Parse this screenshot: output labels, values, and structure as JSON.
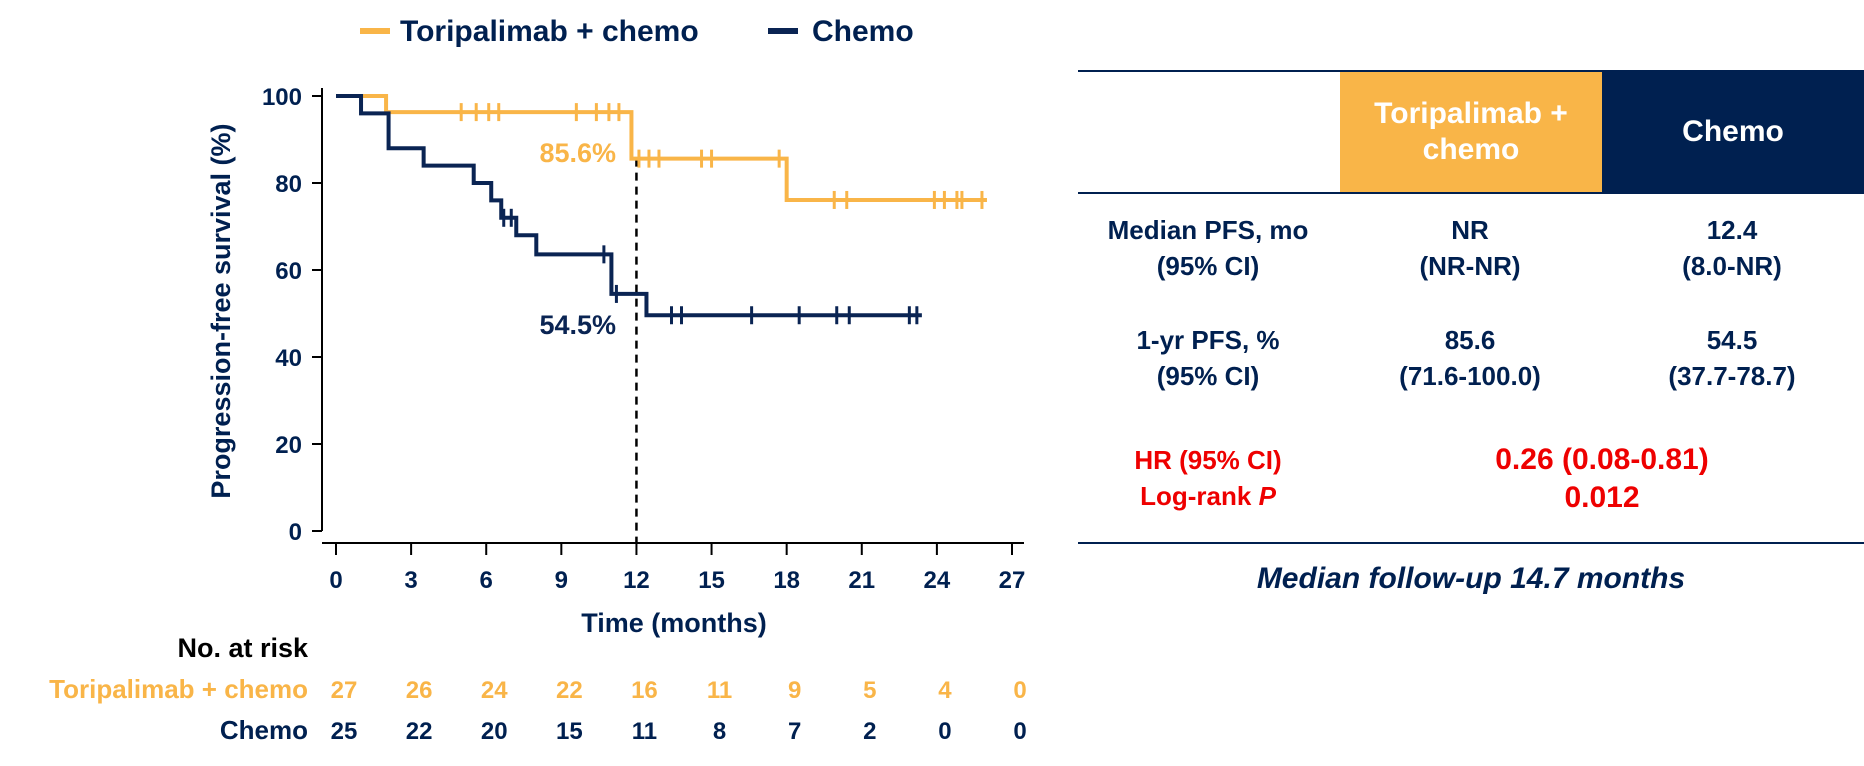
{
  "colors": {
    "tori": "#F9B548",
    "chemo": "#0A2453",
    "text_dark": "#002050",
    "hr_red": "#EE0000"
  },
  "chart_data": {
    "type": "line",
    "subtype": "kaplan-meier",
    "title": "",
    "xlabel": "Time (months)",
    "ylabel": "Progression-free survival (%)",
    "xlim": [
      0,
      27
    ],
    "ylim": [
      0,
      100
    ],
    "xticks": [
      0,
      3,
      6,
      9,
      12,
      15,
      18,
      21,
      24,
      27
    ],
    "yticks": [
      0,
      20,
      40,
      60,
      80,
      100
    ],
    "legend_position": "top",
    "legend": [
      "Toripalimab + chemo",
      "Chemo"
    ],
    "reference_line_x": 12,
    "series": [
      {
        "name": "Toripalimab + chemo",
        "color": "#F9B548",
        "steps": [
          [
            0,
            100
          ],
          [
            2,
            96.3
          ],
          [
            11.8,
            85.6
          ],
          [
            18,
            76.1
          ],
          [
            26,
            76.1
          ]
        ],
        "censors": [
          [
            5,
            96.3
          ],
          [
            5.6,
            96.3
          ],
          [
            6.1,
            96.3
          ],
          [
            6.5,
            96.3
          ],
          [
            9.6,
            96.3
          ],
          [
            10.4,
            96.3
          ],
          [
            10.9,
            96.3
          ],
          [
            11.3,
            96.3
          ],
          [
            12.1,
            85.6
          ],
          [
            12.5,
            85.6
          ],
          [
            12.9,
            85.6
          ],
          [
            14.6,
            85.6
          ],
          [
            15,
            85.6
          ],
          [
            17.7,
            85.6
          ],
          [
            19.9,
            76.1
          ],
          [
            20.4,
            76.1
          ],
          [
            23.9,
            76.1
          ],
          [
            24.3,
            76.1
          ],
          [
            24.8,
            76.1
          ],
          [
            25,
            76.1
          ],
          [
            25.8,
            76.1
          ]
        ],
        "annotation": {
          "text": "85.6%",
          "x": 12,
          "y": 85.6
        }
      },
      {
        "name": "Chemo",
        "color": "#0A2453",
        "steps": [
          [
            0,
            100
          ],
          [
            1,
            96
          ],
          [
            2.1,
            88
          ],
          [
            3.5,
            84
          ],
          [
            5.5,
            80
          ],
          [
            6.2,
            76
          ],
          [
            6.6,
            72
          ],
          [
            7.2,
            68
          ],
          [
            8,
            63.6
          ],
          [
            11,
            54.5
          ],
          [
            12.4,
            49.6
          ],
          [
            23.4,
            49.6
          ]
        ],
        "censors": [
          [
            6.7,
            72
          ],
          [
            7,
            72
          ],
          [
            10.7,
            63.6
          ],
          [
            11.2,
            54.5
          ],
          [
            13.4,
            49.6
          ],
          [
            13.8,
            49.6
          ],
          [
            16.6,
            49.6
          ],
          [
            18.5,
            49.6
          ],
          [
            20,
            49.6
          ],
          [
            20.5,
            49.6
          ],
          [
            22.9,
            49.6
          ],
          [
            23.2,
            49.6
          ]
        ],
        "annotation": {
          "text": "54.5%",
          "x": 12,
          "y": 54.5
        }
      }
    ],
    "risk_table": {
      "title": "No. at risk",
      "rows": [
        {
          "label": "Toripalimab + chemo",
          "values": [
            27,
            26,
            24,
            22,
            16,
            11,
            9,
            5,
            4,
            0
          ]
        },
        {
          "label": "Chemo",
          "values": [
            25,
            22,
            20,
            15,
            11,
            8,
            7,
            2,
            0,
            0
          ]
        }
      ]
    }
  },
  "summary_table": {
    "headers": [
      "Toripalimab +\nchemo",
      "Chemo"
    ],
    "rows": [
      {
        "label": "Median PFS, mo\n(95% CI)",
        "tori": "NR\n(NR-NR)",
        "chemo": "12.4\n(8.0-NR)"
      },
      {
        "label": "1-yr PFS, %\n(95% CI)",
        "tori": "85.6\n(71.6-100.0)",
        "chemo": "54.5\n(37.7-78.7)"
      }
    ],
    "hr_label": "HR (95% CI)",
    "logrank_label": "Log-rank",
    "logrank_p": "P",
    "hr_value": "0.26 (0.08-0.81)",
    "p_value": "0.012",
    "footnote": "Median follow-up 14.7 months"
  }
}
